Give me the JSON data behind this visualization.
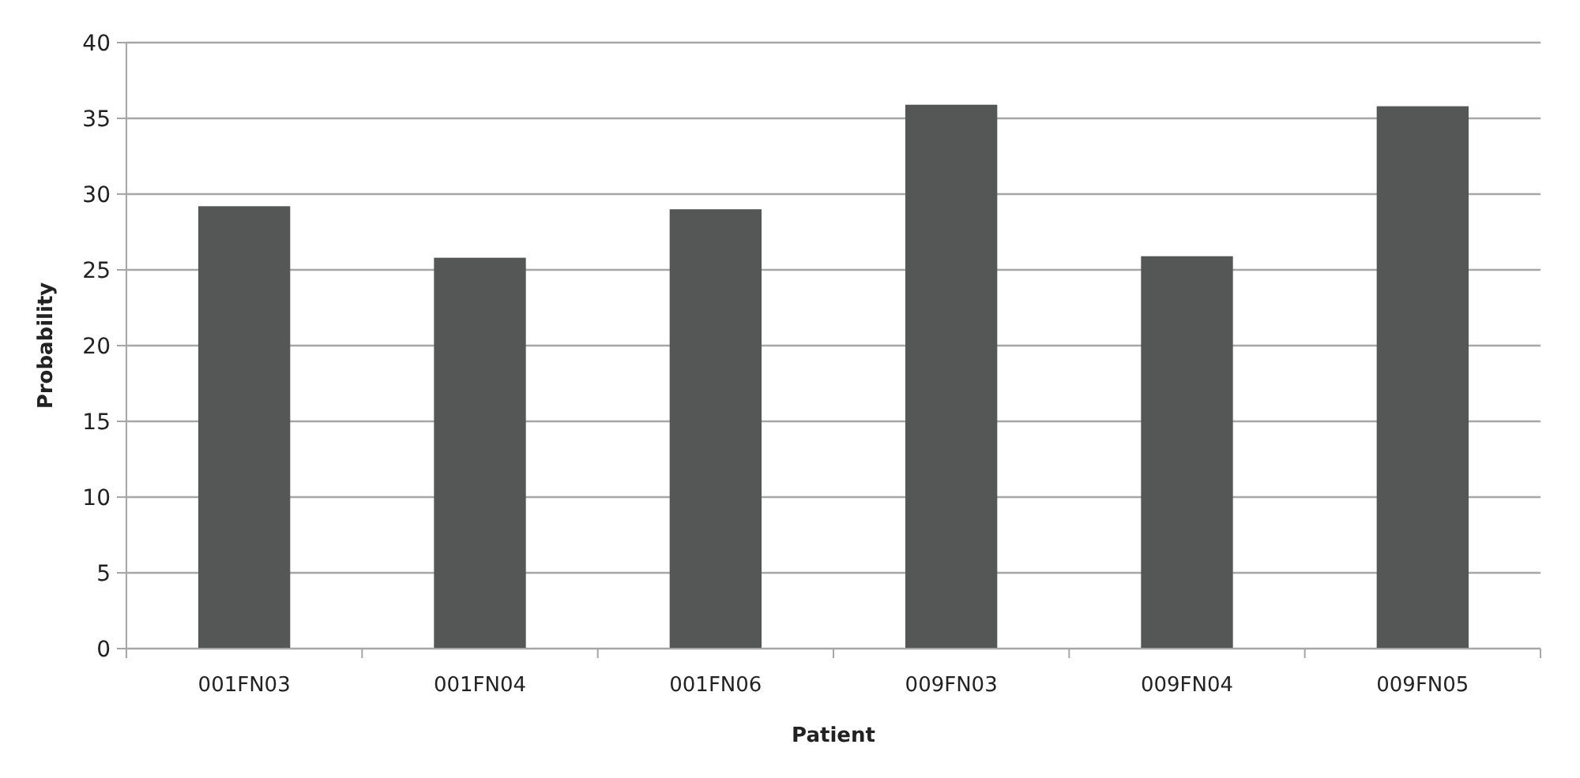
{
  "chart_data": {
    "type": "bar",
    "xlabel": "Patient",
    "ylabel": "Probability",
    "categories": [
      "001FN03",
      "001FN04",
      "001FN06",
      "009FN03",
      "009FN04",
      "009FN05"
    ],
    "values": [
      29.2,
      25.8,
      29.0,
      35.9,
      25.9,
      35.8
    ],
    "color": "#555756",
    "ylim": [
      0,
      40
    ],
    "yticks": [
      0,
      5,
      10,
      15,
      20,
      25,
      30,
      35,
      40
    ],
    "grid": "y"
  }
}
